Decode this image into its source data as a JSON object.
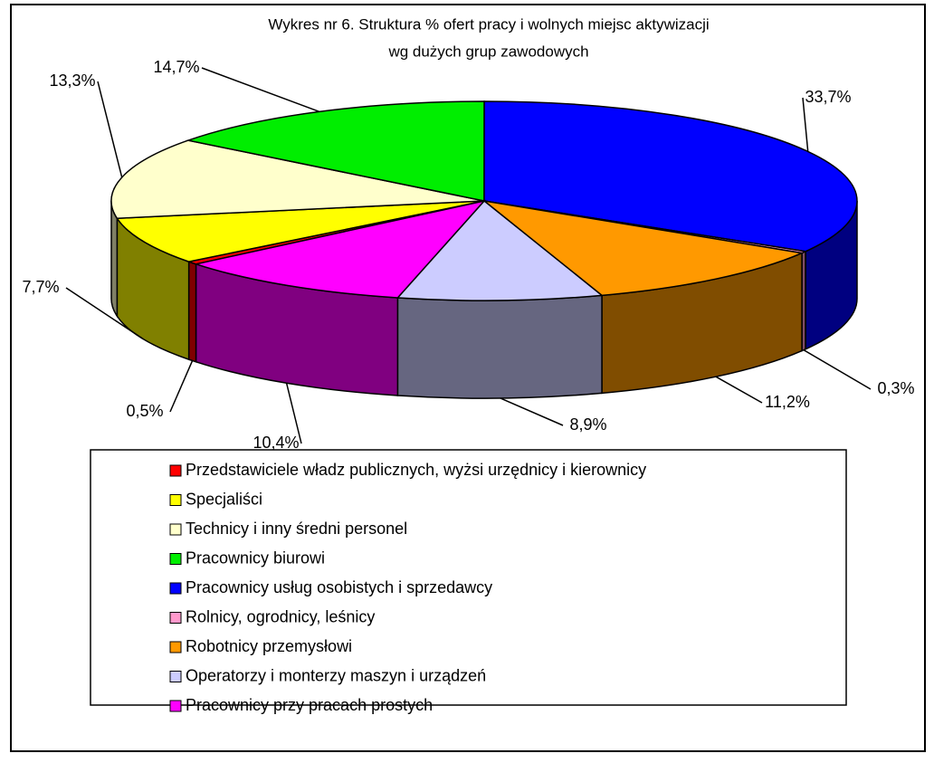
{
  "chart_data": {
    "type": "pie",
    "title": [
      "Wykres nr 6. Struktura % ofert  pracy i wolnych miejsc aktywizacji",
      "wg dużych grup zawodowych"
    ],
    "categories": [
      "Przedstawiciele władz publicznych, wyżsi urzędnicy i kierownicy",
      "Specjaliści",
      "Technicy i inny średni personel",
      "Pracownicy biurowi",
      "Pracownicy usług osobistych i sprzedawcy",
      "Rolnicy, ogrodnicy, leśnicy",
      "Robotnicy przemysłowi",
      "Operatorzy i monterzy maszyn i urządzeń",
      "Pracownicy przy pracach prostych"
    ],
    "values": [
      0.5,
      7.7,
      13.3,
      14.7,
      33.7,
      0.3,
      11.2,
      8.9,
      10.4
    ],
    "value_labels": [
      "0,5%",
      "7,7%",
      "13,3%",
      "14,7%",
      "33,7%",
      "0,3%",
      "11,2%",
      "8,9%",
      "10,4%"
    ],
    "colors": [
      "#ff0000",
      "#ffff00",
      "#ffffcc",
      "#00ee00",
      "#0000ff",
      "#ff99cc",
      "#ff9900",
      "#ccccff",
      "#ff00ff"
    ],
    "legend": "bottom"
  }
}
